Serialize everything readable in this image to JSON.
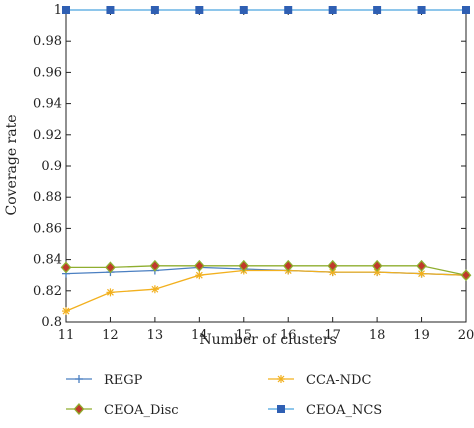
{
  "chart_data": {
    "type": "line",
    "xlabel": "Number of clusters",
    "ylabel": "Coverage rate",
    "x": [
      11,
      12,
      13,
      14,
      15,
      16,
      17,
      18,
      19,
      20
    ],
    "xlim": [
      11,
      20
    ],
    "ylim": [
      0.8,
      1.0
    ],
    "yticks": [
      0.8,
      0.82,
      0.84,
      0.86,
      0.88,
      0.9,
      0.92,
      0.94,
      0.96,
      0.98,
      1
    ],
    "ytick_labels": [
      "0.8",
      "0.82",
      "0.84",
      "0.86",
      "0.88",
      "0.9",
      "0.92",
      "0.94",
      "0.96",
      "0.98",
      "1"
    ],
    "xtick_labels": [
      "11",
      "12",
      "13",
      "14",
      "15",
      "16",
      "17",
      "18",
      "19",
      "20"
    ],
    "grid": false,
    "legend_position": "bottom",
    "series": [
      {
        "name": "REGP",
        "color": "#4a7fc1",
        "marker": "plus",
        "values": [
          0.831,
          0.832,
          0.833,
          0.835,
          0.834,
          0.833,
          0.832,
          0.832,
          0.831,
          0.83
        ]
      },
      {
        "name": "CCA-NDC",
        "color": "#f2b01e",
        "marker": "asterisk",
        "values": [
          0.807,
          0.819,
          0.821,
          0.83,
          0.833,
          0.833,
          0.832,
          0.832,
          0.831,
          0.83
        ]
      },
      {
        "name": "CEOA_Disc",
        "color": "#8fae2f",
        "marker": "diamond",
        "marker_color": "#c0392b",
        "values": [
          0.835,
          0.835,
          0.836,
          0.836,
          0.836,
          0.836,
          0.836,
          0.836,
          0.836,
          0.83
        ]
      },
      {
        "name": "CEOA_NCS",
        "color": "#4aa3df",
        "marker": "square",
        "marker_color": "#2f5fb3",
        "values": [
          1,
          1,
          1,
          1,
          1,
          1,
          1,
          1,
          1,
          1
        ]
      }
    ]
  }
}
